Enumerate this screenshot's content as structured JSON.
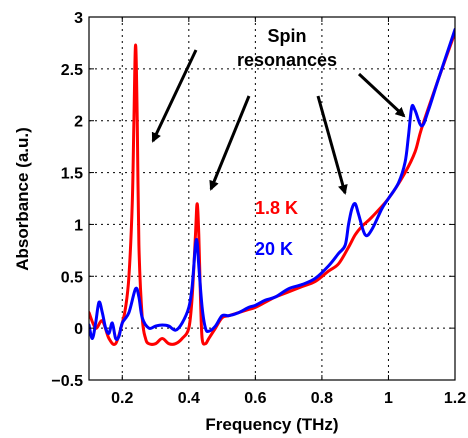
{
  "chart_data": {
    "type": "line",
    "xlabel": "Frequency (THz)",
    "ylabel": "Absorbance (a.u.)",
    "xlim": [
      0.1,
      1.2
    ],
    "ylim": [
      -0.5,
      3
    ],
    "x_ticks": [
      0.2,
      0.4,
      0.6,
      0.8,
      1,
      1.2
    ],
    "x_tick_labels": [
      "0.2",
      "0.4",
      "0.6",
      "0.8",
      "1",
      "1.2"
    ],
    "y_ticks": [
      -0.5,
      0,
      0.5,
      1,
      1.5,
      2,
      2.5,
      3
    ],
    "y_tick_labels": [
      "−0.5",
      "0",
      "0.5",
      "1",
      "1.5",
      "2",
      "2.5",
      "3"
    ],
    "grid": true,
    "annotation": {
      "lines": [
        "Spin",
        "resonances"
      ]
    },
    "series": [
      {
        "name": "1.8 K",
        "color": "#ff0000",
        "x": [
          0.1,
          0.12,
          0.14,
          0.16,
          0.18,
          0.2,
          0.21,
          0.22,
          0.23,
          0.235,
          0.24,
          0.245,
          0.25,
          0.26,
          0.27,
          0.28,
          0.3,
          0.32,
          0.34,
          0.36,
          0.38,
          0.4,
          0.41,
          0.42,
          0.425,
          0.43,
          0.435,
          0.44,
          0.45,
          0.46,
          0.48,
          0.5,
          0.52,
          0.55,
          0.58,
          0.6,
          0.63,
          0.66,
          0.7,
          0.74,
          0.78,
          0.82,
          0.85,
          0.88,
          0.9,
          0.92,
          0.95,
          1.0,
          1.05,
          1.08,
          1.1,
          1.15,
          1.2
        ],
        "y": [
          0.15,
          0.0,
          0.07,
          -0.1,
          -0.15,
          0.05,
          0.2,
          0.5,
          1.2,
          2.0,
          2.73,
          2.0,
          0.8,
          0.1,
          -0.1,
          -0.15,
          -0.15,
          -0.1,
          -0.15,
          -0.15,
          -0.1,
          0.0,
          0.3,
          0.9,
          1.2,
          0.9,
          0.3,
          -0.1,
          -0.15,
          -0.1,
          0.0,
          0.1,
          0.12,
          0.15,
          0.18,
          0.2,
          0.25,
          0.3,
          0.35,
          0.4,
          0.45,
          0.55,
          0.62,
          0.78,
          0.9,
          0.98,
          1.07,
          1.25,
          1.5,
          1.7,
          1.93,
          2.4,
          2.85
        ]
      },
      {
        "name": "20 K",
        "color": "#0000ff",
        "x": [
          0.1,
          0.11,
          0.12,
          0.13,
          0.14,
          0.15,
          0.16,
          0.17,
          0.18,
          0.19,
          0.2,
          0.22,
          0.24,
          0.25,
          0.26,
          0.28,
          0.3,
          0.32,
          0.34,
          0.36,
          0.38,
          0.4,
          0.41,
          0.42,
          0.425,
          0.43,
          0.44,
          0.45,
          0.46,
          0.48,
          0.5,
          0.52,
          0.55,
          0.58,
          0.6,
          0.63,
          0.66,
          0.7,
          0.74,
          0.78,
          0.82,
          0.85,
          0.87,
          0.88,
          0.89,
          0.9,
          0.91,
          0.93,
          0.95,
          0.98,
          1.0,
          1.03,
          1.05,
          1.06,
          1.07,
          1.08,
          1.1,
          1.12,
          1.15,
          1.2
        ],
        "y": [
          0.03,
          -0.1,
          0.05,
          0.25,
          0.15,
          0.0,
          -0.05,
          0.05,
          -0.1,
          -0.08,
          0.05,
          0.15,
          0.38,
          0.3,
          0.1,
          0.0,
          0.02,
          0.03,
          0.02,
          -0.02,
          0.05,
          0.2,
          0.4,
          0.8,
          0.83,
          0.6,
          0.2,
          0.0,
          -0.03,
          0.02,
          0.12,
          0.12,
          0.15,
          0.2,
          0.22,
          0.27,
          0.3,
          0.38,
          0.42,
          0.48,
          0.6,
          0.72,
          0.8,
          1.0,
          1.15,
          1.2,
          1.1,
          0.9,
          0.95,
          1.15,
          1.25,
          1.4,
          1.6,
          1.85,
          2.13,
          2.1,
          1.95,
          2.1,
          2.4,
          2.88
        ]
      }
    ]
  }
}
